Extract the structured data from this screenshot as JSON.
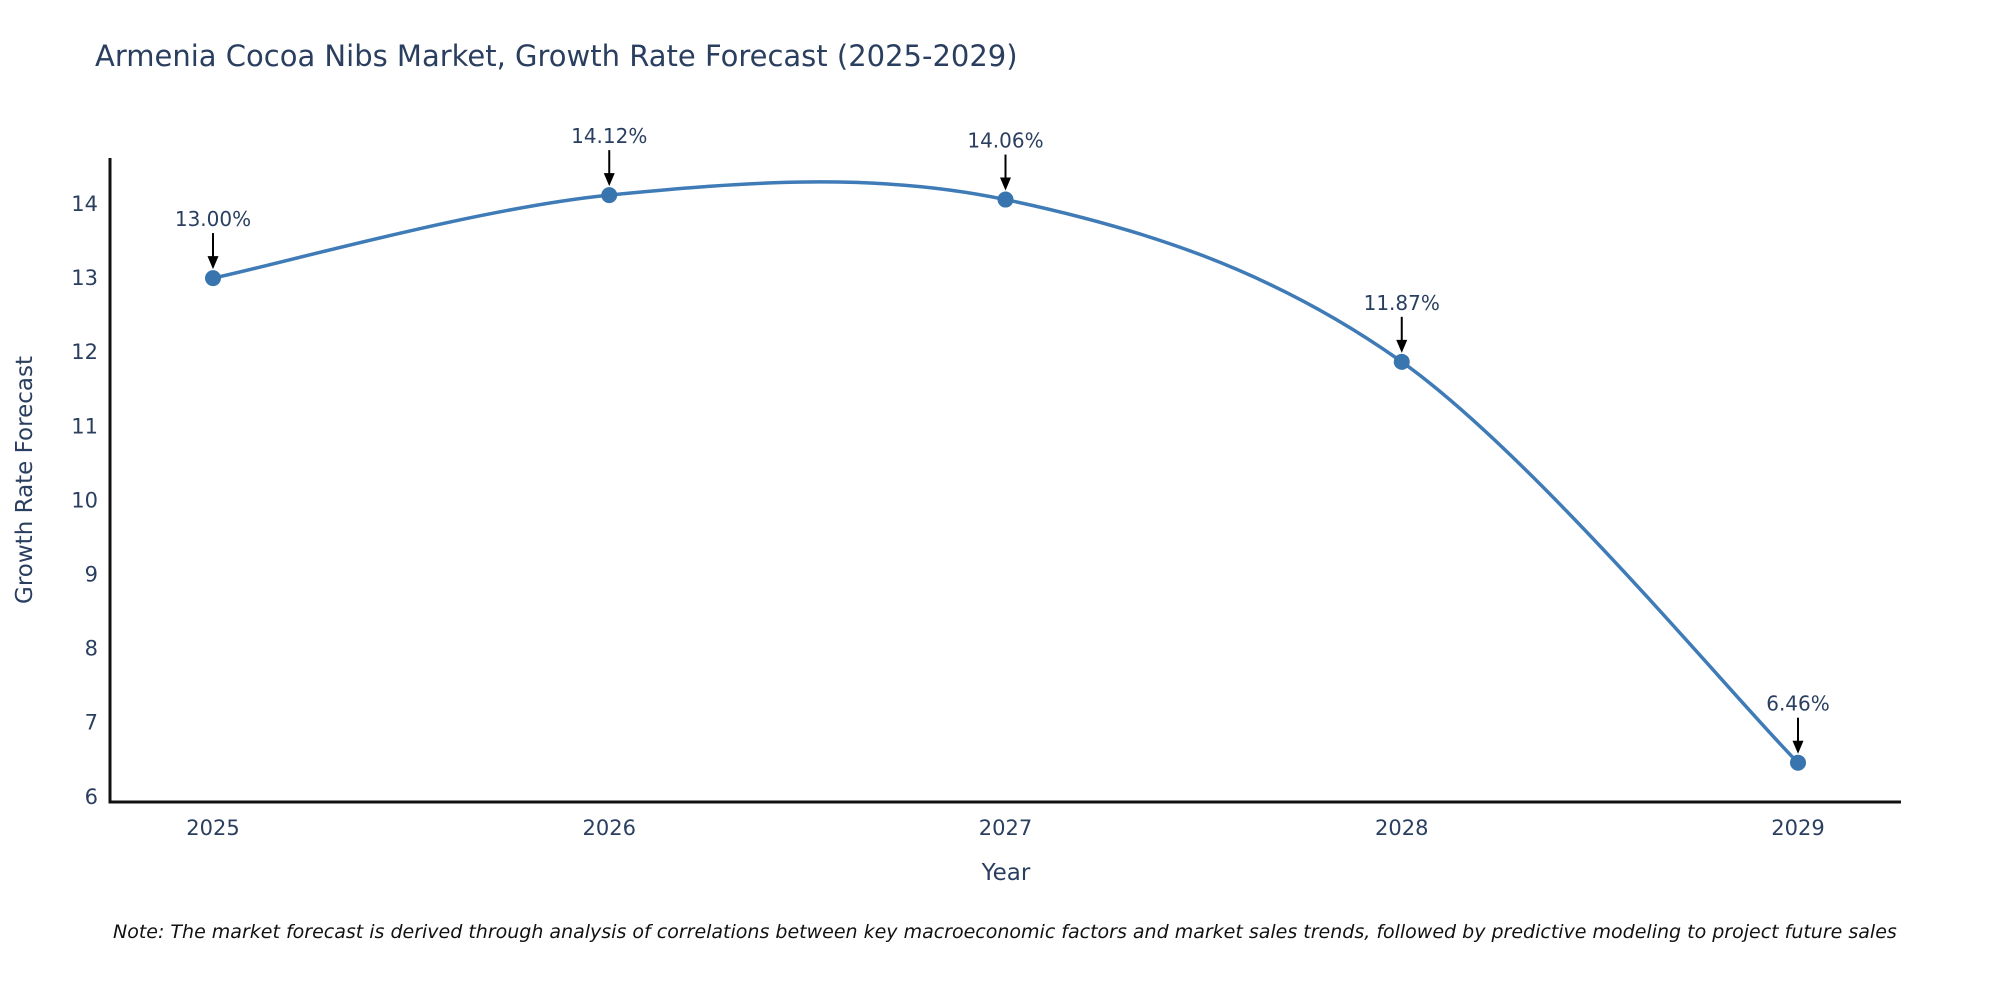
{
  "title": "Armenia Cocoa Nibs Market, Growth Rate Forecast (2025-2029)",
  "note": "Note: The market forecast is derived through analysis of correlations between key macroeconomic factors and market sales trends, followed by predictive modeling to project future sales",
  "chart_data": {
    "type": "line",
    "title": "Armenia Cocoa Nibs Market, Growth Rate Forecast (2025-2029)",
    "xlabel": "Year",
    "ylabel": "Growth Rate Forecast",
    "categories": [
      "2025",
      "2026",
      "2027",
      "2028",
      "2029"
    ],
    "series": [
      {
        "name": "Growth Rate Forecast",
        "values": [
          13.0,
          14.12,
          14.06,
          11.87,
          6.46
        ]
      }
    ],
    "point_labels": [
      "13.00%",
      "14.12%",
      "14.06%",
      "11.87%",
      "6.46%"
    ],
    "yticks": [
      6,
      7,
      8,
      9,
      10,
      11,
      12,
      13,
      14
    ],
    "ylim": [
      5.95,
      14.65
    ],
    "line_shape": "spline",
    "grid": false,
    "legend": "none",
    "colors": {
      "line": "#3f7bb6",
      "marker": "#3874ae",
      "text": "#2a3f5f",
      "axis_line": "#111111",
      "annotation_text": "#2a3f5f",
      "annotation_arrow": "#000000",
      "background": "#ffffff"
    }
  }
}
